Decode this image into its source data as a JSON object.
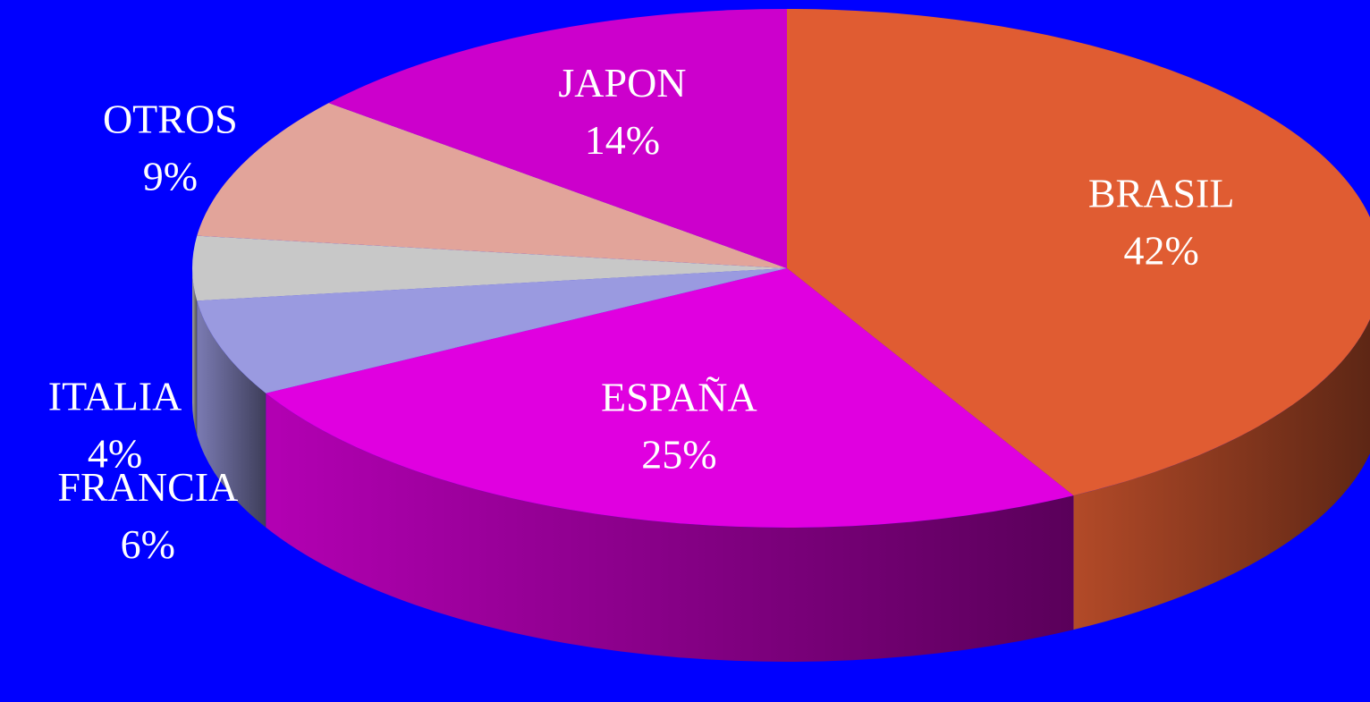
{
  "chart_data": {
    "type": "pie",
    "categories": [
      "BRASIL",
      "ESPAÑA",
      "FRANCIA",
      "ITALIA",
      "OTROS",
      "JAPON"
    ],
    "values": [
      42,
      25,
      6,
      4,
      9,
      14
    ],
    "value_labels": [
      "42%",
      "25%",
      "6%",
      "4%",
      "9%",
      "14%"
    ],
    "colors": [
      "#e05c32",
      "#e000e0",
      "#9a9ae0",
      "#c8c8c8",
      "#e2a49a",
      "#cc00cc"
    ]
  }
}
